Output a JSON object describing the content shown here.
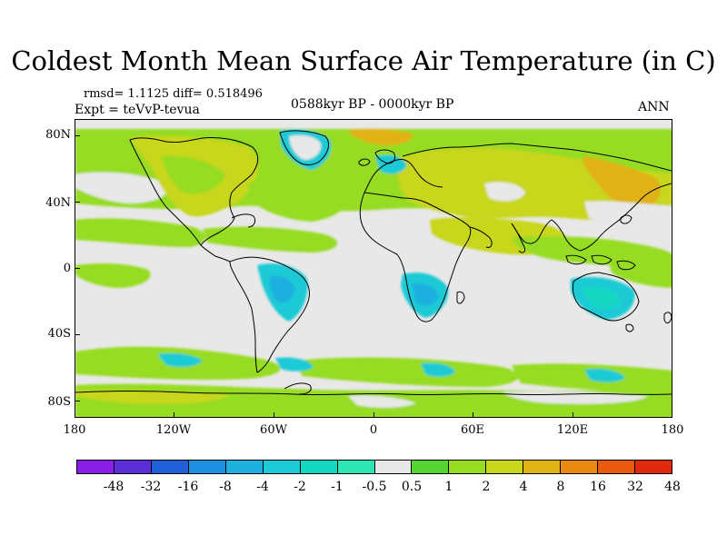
{
  "title": "Coldest Month Mean Surface Air Temperature (in C)",
  "stats": {
    "rmsd_diff": "rmsd= 1.1125 diff= 0.518496",
    "expt": "Expt = teVvP-tevua",
    "period": "0588kyr BP - 0000kyr BP",
    "season": "ANN"
  },
  "axes": {
    "y_ticks": [
      "80N",
      "40N",
      "0",
      "40S",
      "80S"
    ],
    "x_ticks": [
      "180",
      "120W",
      "60W",
      "0",
      "60E",
      "120E",
      "180"
    ]
  },
  "colorbar": {
    "labels": [
      "-48",
      "-32",
      "-16",
      "-8",
      "-4",
      "-2",
      "-1",
      "-0.5",
      "0.5",
      "1",
      "2",
      "4",
      "8",
      "16",
      "32",
      "48"
    ],
    "colors": [
      "#8a1ee6",
      "#5a2fd6",
      "#1f5fd8",
      "#1f8fe0",
      "#1fb0e0",
      "#1ecad6",
      "#16d8c2",
      "#2ee6b4",
      "#e8e8e8",
      "#55d433",
      "#96dc22",
      "#c8d61c",
      "#e0b216",
      "#e88a14",
      "#e85a10",
      "#e02a0c"
    ]
  },
  "icons": {
    "map": "world-map-coastlines"
  }
}
